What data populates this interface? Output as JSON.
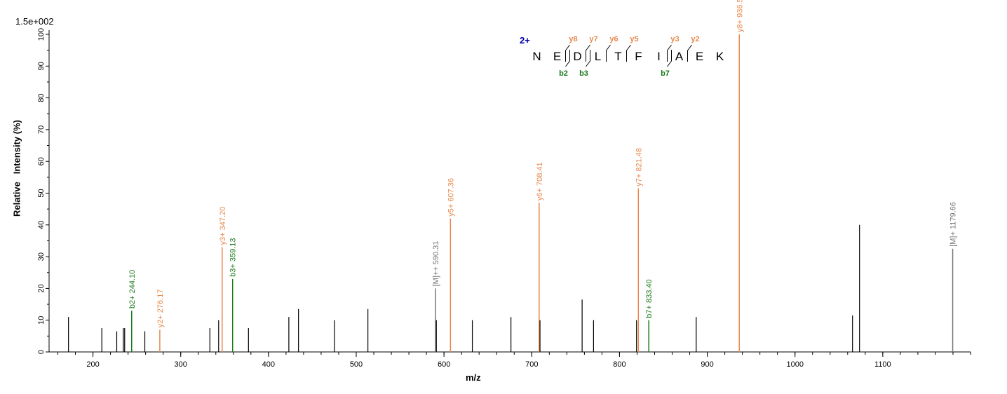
{
  "scale_label": "1.5e+002",
  "chart_data": {
    "type": "bar",
    "xlabel": "m/z",
    "ylabel": "Relative   Intensity (%)",
    "xlim": [
      150,
      1200
    ],
    "ylim": [
      0,
      100
    ],
    "x_ticks": [
      200,
      300,
      400,
      500,
      600,
      700,
      800,
      900,
      1000,
      1100
    ],
    "y_ticks": [
      0,
      10,
      20,
      30,
      40,
      50,
      60,
      70,
      80,
      90,
      100
    ],
    "colors": {
      "b_ion": "#1a7a1a",
      "y_ion": "#e8894e",
      "precursor": "#777777",
      "unlabeled": "#000000",
      "charge": "#0000aa"
    },
    "peaks": [
      {
        "mz": 172.1,
        "intensity": 11
      },
      {
        "mz": 210.1,
        "intensity": 7.5
      },
      {
        "mz": 227.1,
        "intensity": 6.5
      },
      {
        "mz": 234.6,
        "intensity": 7.5
      },
      {
        "mz": 236.1,
        "intensity": 7.5
      },
      {
        "mz": 244.1,
        "intensity": 13,
        "label": "b2+ 244.10",
        "type": "b"
      },
      {
        "mz": 259.1,
        "intensity": 6.5
      },
      {
        "mz": 276.17,
        "intensity": 7,
        "label": "y2+ 276.17",
        "type": "y"
      },
      {
        "mz": 333.2,
        "intensity": 7.5
      },
      {
        "mz": 343.2,
        "intensity": 10
      },
      {
        "mz": 347.2,
        "intensity": 33,
        "label": "y3+ 347.20",
        "type": "y"
      },
      {
        "mz": 359.13,
        "intensity": 23,
        "label": "b3+ 359.13",
        "type": "b"
      },
      {
        "mz": 377.2,
        "intensity": 7.5
      },
      {
        "mz": 423.2,
        "intensity": 11
      },
      {
        "mz": 434.2,
        "intensity": 13.5
      },
      {
        "mz": 475.2,
        "intensity": 10
      },
      {
        "mz": 513.3,
        "intensity": 13.5
      },
      {
        "mz": 590.31,
        "intensity": 20,
        "label": "[M]++ 590.31",
        "type": "precursor"
      },
      {
        "mz": 591.3,
        "intensity": 10
      },
      {
        "mz": 607.36,
        "intensity": 42,
        "label": "y5+ 607.36",
        "type": "y"
      },
      {
        "mz": 632.3,
        "intensity": 10
      },
      {
        "mz": 676.3,
        "intensity": 11
      },
      {
        "mz": 708.41,
        "intensity": 47,
        "label": "y6+ 708.41",
        "type": "y"
      },
      {
        "mz": 709.4,
        "intensity": 10
      },
      {
        "mz": 757.4,
        "intensity": 16.5
      },
      {
        "mz": 770.4,
        "intensity": 10
      },
      {
        "mz": 819.4,
        "intensity": 10
      },
      {
        "mz": 821.48,
        "intensity": 51.5,
        "label": "y7+ 821.48",
        "type": "y"
      },
      {
        "mz": 833.4,
        "intensity": 10,
        "label": "b7+ 833.40",
        "type": "b"
      },
      {
        "mz": 887.4,
        "intensity": 11
      },
      {
        "mz": 936.51,
        "intensity": 100,
        "label": "y8+ 936.51",
        "type": "y"
      },
      {
        "mz": 1065.5,
        "intensity": 11.5
      },
      {
        "mz": 1073.5,
        "intensity": 40
      },
      {
        "mz": 1179.66,
        "intensity": 32.5,
        "label": "[M]+ 1179.66",
        "type": "precursor"
      }
    ],
    "sequence": {
      "charge": "2+",
      "residues": [
        "N",
        "E",
        "D",
        "L",
        "T",
        "F",
        "I",
        "A",
        "E",
        "K"
      ],
      "y_ions": [
        {
          "label": "y8",
          "after": 2
        },
        {
          "label": "y7",
          "after": 3
        },
        {
          "label": "y6",
          "after": 4
        },
        {
          "label": "y5",
          "after": 5
        },
        {
          "label": "y3",
          "after": 7
        },
        {
          "label": "y2",
          "after": 8
        }
      ],
      "b_ions": [
        {
          "label": "b2",
          "after": 2
        },
        {
          "label": "b3",
          "after": 3
        },
        {
          "label": "b7",
          "after": 7
        }
      ]
    }
  }
}
